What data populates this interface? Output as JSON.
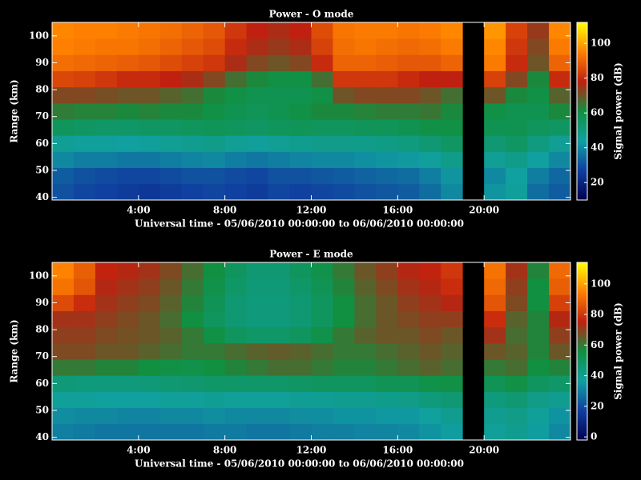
{
  "chart_data": [
    {
      "type": "heatmap",
      "title": "Power - O mode",
      "x_label": "Universal time - 05/06/2010 00:00:00 to 06/06/2010 00:00:00",
      "y_label": "Range (km)",
      "colorbar_label": "Signal power (dB)",
      "xbins": [
        0,
        1,
        2,
        3,
        4,
        5,
        6,
        7,
        8,
        9,
        10,
        11,
        12,
        13,
        14,
        15,
        16,
        17,
        18,
        19,
        20,
        21,
        22,
        23,
        24
      ],
      "ybins": [
        39,
        45,
        51,
        57,
        63,
        69,
        75,
        81,
        87,
        93,
        99,
        105
      ],
      "xlim": [
        0,
        24
      ],
      "ylim": [
        39,
        105
      ],
      "xticks": [
        {
          "value": 4,
          "label": "4:00"
        },
        {
          "value": 8,
          "label": "8:00"
        },
        {
          "value": 12,
          "label": "12:00"
        },
        {
          "value": 16,
          "label": "16:00"
        },
        {
          "value": 20,
          "label": "20:00"
        }
      ],
      "yticks": [
        40,
        50,
        60,
        70,
        80,
        90,
        100
      ],
      "zlim": [
        10,
        112
      ],
      "cticks": [
        20,
        40,
        60,
        80,
        100
      ],
      "colormap": [
        "#000050",
        "#1040a0",
        "#10a0a0",
        "#109040",
        "#c02010",
        "#ff8000",
        "#ffff00"
      ],
      "z": [
        [
          30,
          28,
          27,
          26,
          25,
          26,
          27,
          28,
          27,
          26,
          28,
          27,
          28,
          29,
          30,
          31,
          32,
          35,
          40,
          null,
          42,
          45,
          35,
          32
        ],
        [
          32,
          30,
          29,
          28,
          28,
          29,
          30,
          30,
          29,
          28,
          30,
          30,
          31,
          32,
          33,
          34,
          35,
          38,
          42,
          null,
          40,
          44,
          38,
          34
        ],
        [
          40,
          38,
          38,
          37,
          37,
          38,
          39,
          40,
          38,
          37,
          38,
          39,
          40,
          40,
          41,
          42,
          43,
          45,
          48,
          null,
          46,
          48,
          44,
          40
        ],
        [
          46,
          45,
          45,
          44,
          45,
          46,
          47,
          48,
          46,
          45,
          46,
          47,
          48,
          48,
          48,
          49,
          50,
          52,
          55,
          null,
          52,
          55,
          50,
          46
        ],
        [
          56,
          55,
          54,
          54,
          55,
          55,
          56,
          57,
          56,
          55,
          56,
          57,
          56,
          56,
          57,
          57,
          58,
          60,
          60,
          null,
          58,
          58,
          56,
          55
        ],
        [
          64,
          63,
          63,
          62,
          63,
          62,
          62,
          60,
          58,
          57,
          58,
          60,
          62,
          62,
          63,
          64,
          64,
          65,
          62,
          null,
          60,
          58,
          58,
          62
        ],
        [
          72,
          72,
          71,
          70,
          70,
          68,
          66,
          62,
          60,
          58,
          58,
          58,
          60,
          70,
          72,
          72,
          72,
          70,
          66,
          null,
          70,
          62,
          60,
          68
        ],
        [
          85,
          84,
          82,
          80,
          80,
          78,
          76,
          72,
          66,
          62,
          60,
          60,
          66,
          82,
          82,
          82,
          80,
          78,
          78,
          null,
          84,
          72,
          62,
          80
        ],
        [
          92,
          91,
          90,
          89,
          88,
          86,
          84,
          82,
          76,
          72,
          70,
          72,
          80,
          90,
          90,
          89,
          88,
          88,
          90,
          null,
          94,
          80,
          70,
          90
        ],
        [
          95,
          94,
          93,
          93,
          92,
          90,
          88,
          86,
          80,
          76,
          74,
          76,
          84,
          92,
          93,
          92,
          91,
          92,
          94,
          null,
          96,
          82,
          72,
          94
        ],
        [
          96,
          95,
          95,
          94,
          93,
          92,
          90,
          88,
          82,
          78,
          76,
          78,
          86,
          93,
          94,
          94,
          93,
          94,
          96,
          null,
          98,
          84,
          74,
          96
        ]
      ]
    },
    {
      "type": "heatmap",
      "title": "Power - E mode",
      "x_label": "Universal time - 05/06/2010 00:00:00 to 06/06/2010 00:00:00",
      "y_label": "Range (km)",
      "colorbar_label": "Signal power (dB)",
      "xbins": [
        0,
        1,
        2,
        3,
        4,
        5,
        6,
        7,
        8,
        9,
        10,
        11,
        12,
        13,
        14,
        15,
        16,
        17,
        18,
        19,
        20,
        21,
        22,
        23,
        24
      ],
      "ybins": [
        39,
        45,
        51,
        57,
        63,
        69,
        75,
        81,
        87,
        93,
        99,
        105
      ],
      "xlim": [
        0,
        24
      ],
      "ylim": [
        39,
        105
      ],
      "xticks": [
        {
          "value": 4,
          "label": "4:00"
        },
        {
          "value": 8,
          "label": "8:00"
        },
        {
          "value": 12,
          "label": "12:00"
        },
        {
          "value": 16,
          "label": "16:00"
        },
        {
          "value": 20,
          "label": "20:00"
        }
      ],
      "yticks": [
        40,
        50,
        60,
        70,
        80,
        90,
        100
      ],
      "zlim": [
        -2,
        114
      ],
      "cticks": [
        0,
        20,
        40,
        60,
        80,
        100
      ],
      "colormap": [
        "#000050",
        "#1040a0",
        "#10a0a0",
        "#109040",
        "#c02010",
        "#ff8000",
        "#ffff00"
      ],
      "z": [
        [
          30,
          29,
          28,
          28,
          28,
          28,
          28,
          29,
          29,
          28,
          28,
          29,
          30,
          30,
          31,
          31,
          32,
          34,
          36,
          null,
          38,
          40,
          36,
          32
        ],
        [
          33,
          32,
          32,
          31,
          31,
          32,
          32,
          33,
          32,
          32,
          32,
          33,
          33,
          34,
          34,
          35,
          35,
          37,
          40,
          null,
          40,
          42,
          38,
          34
        ],
        [
          38,
          38,
          37,
          37,
          37,
          38,
          38,
          39,
          38,
          38,
          38,
          39,
          39,
          40,
          40,
          41,
          42,
          44,
          46,
          null,
          44,
          46,
          42,
          40
        ],
        [
          45,
          44,
          44,
          44,
          45,
          46,
          47,
          48,
          48,
          48,
          48,
          49,
          50,
          50,
          50,
          52,
          52,
          54,
          55,
          null,
          52,
          55,
          50,
          48
        ],
        [
          60,
          60,
          58,
          58,
          56,
          55,
          54,
          56,
          58,
          60,
          62,
          62,
          60,
          58,
          58,
          60,
          62,
          64,
          62,
          null,
          60,
          62,
          56,
          58
        ],
        [
          68,
          68,
          66,
          66,
          64,
          62,
          60,
          60,
          62,
          64,
          65,
          64,
          62,
          60,
          60,
          62,
          64,
          66,
          64,
          null,
          66,
          64,
          58,
          66
        ],
        [
          70,
          70,
          68,
          67,
          66,
          64,
          60,
          55,
          50,
          48,
          48,
          50,
          54,
          60,
          64,
          66,
          66,
          68,
          66,
          null,
          72,
          62,
          58,
          70
        ],
        [
          72,
          72,
          70,
          68,
          66,
          62,
          56,
          50,
          46,
          44,
          44,
          46,
          50,
          56,
          62,
          66,
          68,
          70,
          70,
          null,
          78,
          64,
          58,
          74
        ],
        [
          84,
          78,
          72,
          70,
          68,
          64,
          58,
          52,
          46,
          44,
          44,
          46,
          50,
          56,
          62,
          66,
          70,
          72,
          74,
          null,
          86,
          68,
          56,
          82
        ],
        [
          92,
          86,
          74,
          72,
          70,
          66,
          60,
          54,
          48,
          45,
          45,
          48,
          52,
          58,
          64,
          68,
          72,
          74,
          78,
          null,
          90,
          70,
          56,
          88
        ],
        [
          95,
          88,
          76,
          74,
          72,
          68,
          62,
          56,
          50,
          46,
          46,
          50,
          54,
          60,
          66,
          70,
          74,
          76,
          80,
          null,
          92,
          72,
          58,
          90
        ]
      ]
    }
  ]
}
